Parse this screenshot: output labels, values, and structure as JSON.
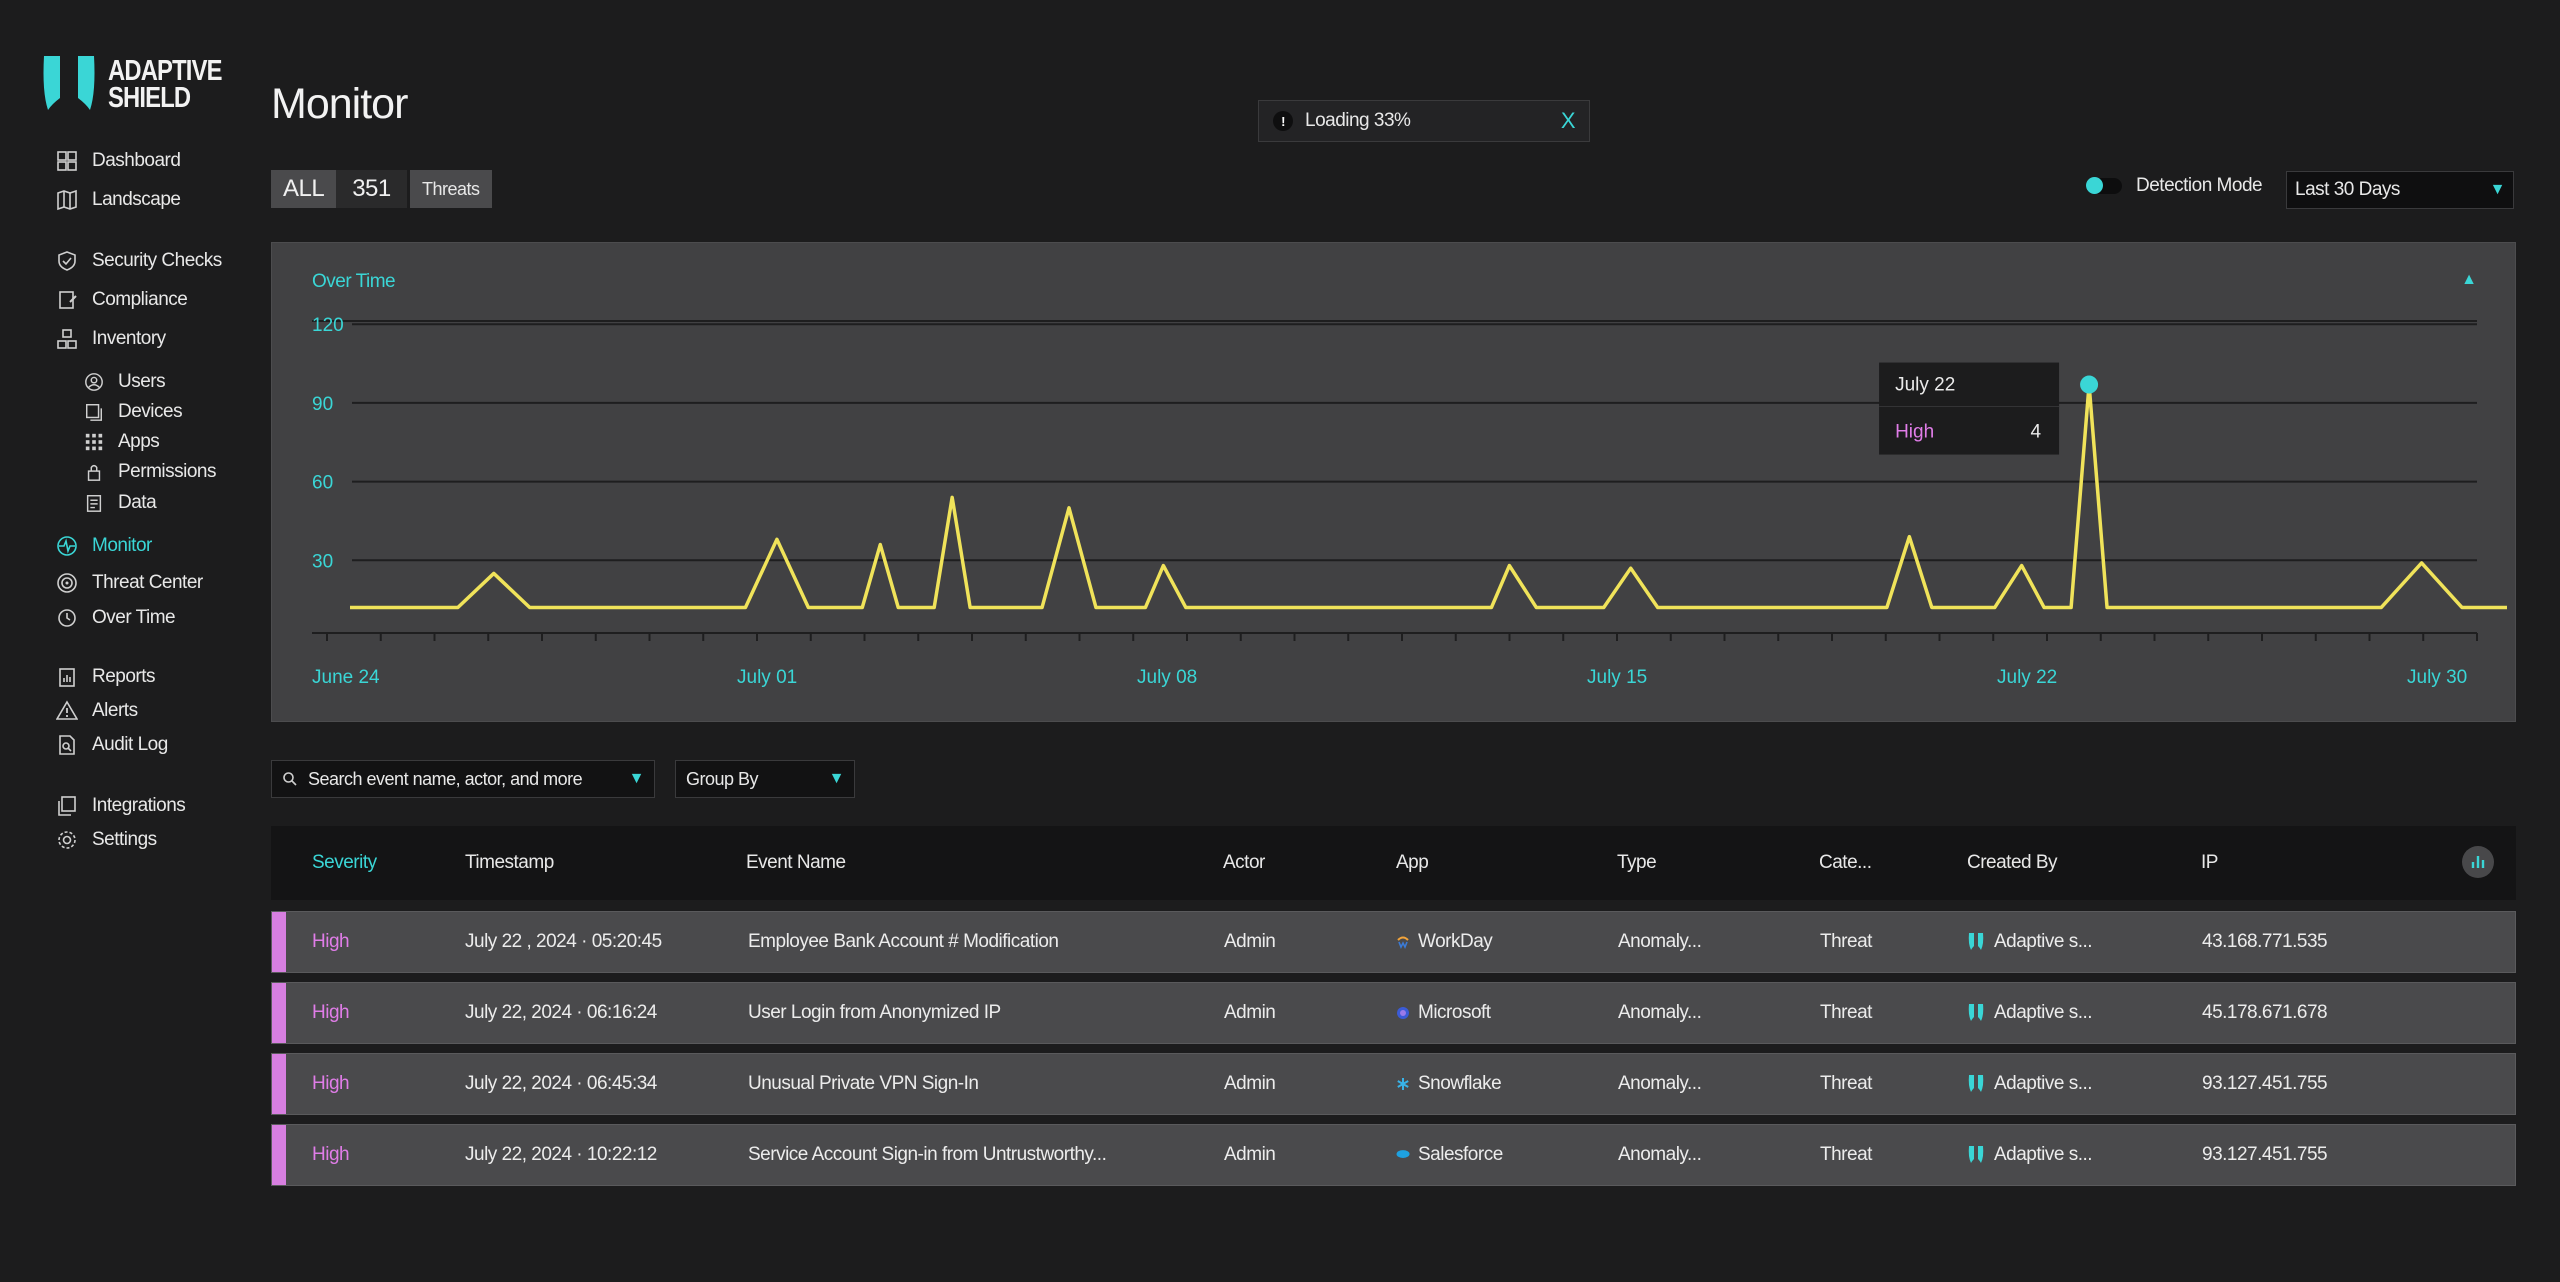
{
  "brand": {
    "line1": "ADAPTIVE",
    "line2": "SHIELD",
    "accent": "#3ad6d6"
  },
  "sidebar": {
    "items": [
      {
        "label": "Dashboard",
        "icon": "dashboard-icon"
      },
      {
        "label": "Landscape",
        "icon": "landscape-icon"
      },
      {
        "label": "Security Checks",
        "icon": "shield-check-icon"
      },
      {
        "label": "Compliance",
        "icon": "compliance-icon"
      },
      {
        "label": "Inventory",
        "icon": "inventory-icon"
      },
      {
        "label": "Users",
        "icon": "user-icon"
      },
      {
        "label": "Devices",
        "icon": "device-icon"
      },
      {
        "label": "Apps",
        "icon": "apps-icon"
      },
      {
        "label": "Permissions",
        "icon": "lock-icon"
      },
      {
        "label": "Data",
        "icon": "data-icon"
      },
      {
        "label": "Monitor",
        "icon": "monitor-icon"
      },
      {
        "label": "Threat Center",
        "icon": "threat-center-icon"
      },
      {
        "label": "Over Time",
        "icon": "clock-icon"
      },
      {
        "label": "Reports",
        "icon": "reports-icon"
      },
      {
        "label": "Alerts",
        "icon": "alert-icon"
      },
      {
        "label": "Audit Log",
        "icon": "audit-log-icon"
      },
      {
        "label": "Integrations",
        "icon": "integrations-icon"
      },
      {
        "label": "Settings",
        "icon": "gear-icon"
      }
    ]
  },
  "header": {
    "title": "Monitor",
    "toast": {
      "icon": "!",
      "text": "Loading 33%",
      "close": "X"
    },
    "filters": {
      "all_label": "ALL",
      "all_count": "351",
      "threats_label": "Threats"
    },
    "detection_label": "Detection Mode",
    "range": "Last 30 Days"
  },
  "chart_data": {
    "type": "line",
    "title": "Over Time",
    "x_labels": [
      "June 24",
      "July 01",
      "July 08",
      "July 15",
      "July 22",
      "July 30"
    ],
    "y_ticks": [
      "30",
      "60",
      "90",
      "120"
    ],
    "ylim": [
      0,
      130
    ],
    "series": [
      {
        "color": "#f0e35a",
        "points": [
          [
            0,
            12
          ],
          [
            1.2,
            12
          ],
          [
            1.6,
            25
          ],
          [
            2.0,
            12
          ],
          [
            4.4,
            12
          ],
          [
            4.75,
            38
          ],
          [
            5.1,
            12
          ],
          [
            5.7,
            12
          ],
          [
            5.9,
            36
          ],
          [
            6.1,
            12
          ],
          [
            6.5,
            12
          ],
          [
            6.7,
            54
          ],
          [
            6.9,
            12
          ],
          [
            7.7,
            12
          ],
          [
            8.0,
            50
          ],
          [
            8.3,
            12
          ],
          [
            8.85,
            12
          ],
          [
            9.05,
            28
          ],
          [
            9.3,
            12
          ],
          [
            12.7,
            12
          ],
          [
            12.9,
            28
          ],
          [
            13.2,
            12
          ],
          [
            13.95,
            12
          ],
          [
            14.25,
            27
          ],
          [
            14.55,
            12
          ],
          [
            17.1,
            12
          ],
          [
            17.35,
            39
          ],
          [
            17.6,
            12
          ],
          [
            18.3,
            12
          ],
          [
            18.6,
            28
          ],
          [
            18.85,
            12
          ],
          [
            19.15,
            12
          ],
          [
            19.35,
            97
          ],
          [
            19.55,
            12
          ],
          [
            22.6,
            12
          ],
          [
            23.05,
            29
          ],
          [
            23.5,
            12
          ],
          [
            24.0,
            12
          ]
        ]
      }
    ],
    "tooltip": {
      "date": "July 22",
      "label": "High",
      "value": "4"
    }
  },
  "toolbar": {
    "search_placeholder": "Search event name, actor, and more",
    "group_by": "Group By"
  },
  "table": {
    "headers": [
      "Severity",
      "Timestamp",
      "Event Name",
      "Actor",
      "App",
      "Type",
      "Cate...",
      "Created By",
      "IP"
    ],
    "rows": [
      {
        "severity": "High",
        "timestamp": "July 22 , 2024 · 05:20:45",
        "event": "Employee Bank Account # Modification",
        "actor": "Admin",
        "app": "WorkDay",
        "app_icon": "workday-icon",
        "type": "Anomaly...",
        "category": "Threat",
        "created_by": "Adaptive s...",
        "ip": "43.168.771.535"
      },
      {
        "severity": "High",
        "timestamp": "July 22, 2024 · 06:16:24",
        "event": "User Login from Anonymized IP",
        "actor": "Admin",
        "app": "Microsoft",
        "app_icon": "microsoft-icon",
        "type": "Anomaly...",
        "category": "Threat",
        "created_by": "Adaptive s...",
        "ip": "45.178.671.678"
      },
      {
        "severity": "High",
        "timestamp": "July 22, 2024 · 06:45:34",
        "event": "Unusual Private VPN Sign-In",
        "actor": "Admin",
        "app": "Snowflake",
        "app_icon": "snowflake-icon",
        "type": "Anomaly...",
        "category": "Threat",
        "created_by": "Adaptive s...",
        "ip": "93.127.451.755"
      },
      {
        "severity": "High",
        "timestamp": "July 22, 2024 · 10:22:12",
        "event": "Service Account Sign-in from Untrustworthy...",
        "actor": "Admin",
        "app": "Salesforce",
        "app_icon": "salesforce-icon",
        "type": "Anomaly...",
        "category": "Threat",
        "created_by": "Adaptive s...",
        "ip": "93.127.451.755"
      }
    ]
  },
  "colors": {
    "accent": "#3ad6d6",
    "high": "#e07de8",
    "line": "#f0e35a"
  }
}
